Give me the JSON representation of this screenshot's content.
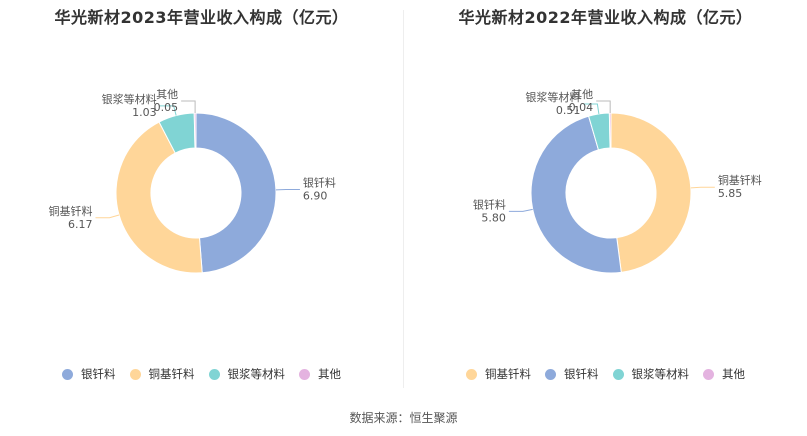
{
  "chart_data": [
    {
      "type": "pie",
      "title": "华光新材2023年营业收入构成（亿元）",
      "categories": [
        "银钎料",
        "铜基钎料",
        "银浆等材料",
        "其他"
      ],
      "values": [
        6.9,
        6.17,
        1.03,
        0.05
      ],
      "value_labels": [
        "6.90",
        "6.17",
        "1.03",
        "0.05"
      ],
      "colors": [
        "#8eaadb",
        "#ffd699",
        "#80d4d4",
        "#e4b3e0"
      ],
      "legend_position": "bottom"
    },
    {
      "type": "pie",
      "title": "华光新材2022年营业收入构成（亿元）",
      "categories": [
        "铜基钎料",
        "银钎料",
        "银浆等材料",
        "其他"
      ],
      "values": [
        5.85,
        5.8,
        0.51,
        0.04
      ],
      "value_labels": [
        "5.85",
        "5.80",
        "0.51",
        "0.04"
      ],
      "colors": [
        "#ffd699",
        "#8eaadb",
        "#80d4d4",
        "#e4b3e0"
      ],
      "legend_position": "bottom"
    }
  ],
  "source": "数据来源：恒生聚源"
}
